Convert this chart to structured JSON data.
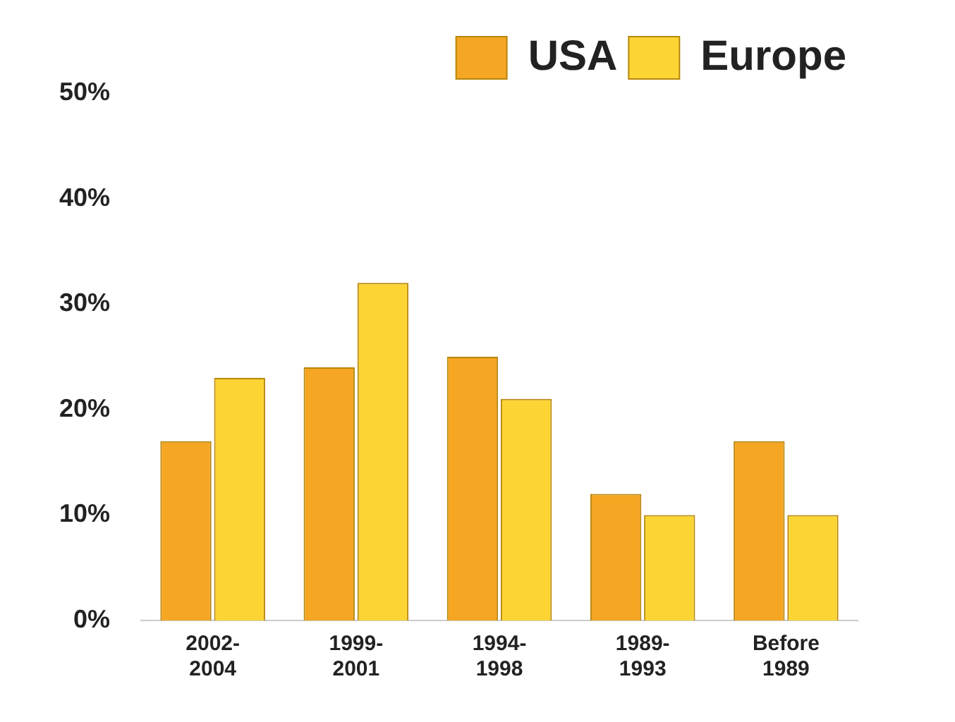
{
  "chart_data": {
    "type": "bar",
    "categories": [
      "2002-\n2004",
      "1999-\n2001",
      "1994-\n1998",
      "1989-\n1993",
      "Before\n1989"
    ],
    "series": [
      {
        "name": "USA",
        "color": "#f5a623",
        "values": [
          17,
          24,
          25,
          12,
          17
        ]
      },
      {
        "name": "Europe",
        "color": "#fcd535",
        "values": [
          23,
          32,
          21,
          10,
          10
        ]
      }
    ],
    "ylim": [
      0,
      50
    ],
    "yticks": [
      {
        "value": 0,
        "label": "0%"
      },
      {
        "value": 10,
        "label": "10%"
      },
      {
        "value": 20,
        "label": "20%"
      },
      {
        "value": 30,
        "label": "30%"
      },
      {
        "value": 40,
        "label": "40%"
      },
      {
        "value": 50,
        "label": "50%"
      }
    ],
    "grid": false,
    "legend": "top right"
  }
}
